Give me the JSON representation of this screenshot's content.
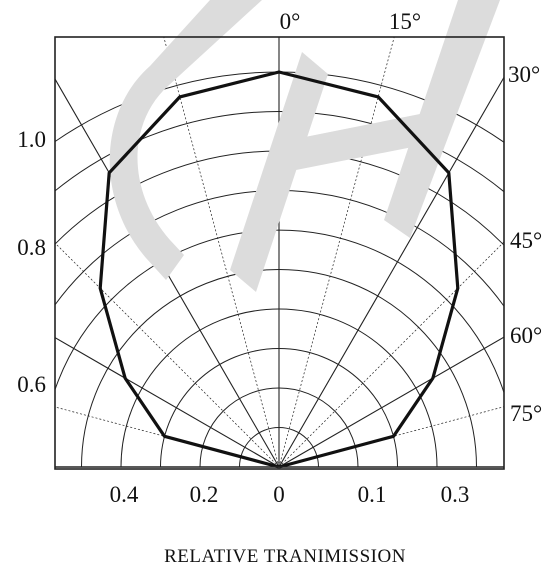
{
  "chart_data": {
    "type": "polar",
    "title": "",
    "xlabel": "RELATIVE TRANIMISSION",
    "angle_unit": "°",
    "angle_labels": [
      {
        "angle": 0,
        "text": "0°"
      },
      {
        "angle": 15,
        "text": "15°"
      },
      {
        "angle": 30,
        "text": "30°"
      },
      {
        "angle": 45,
        "text": "45°"
      },
      {
        "angle": 60,
        "text": "60°"
      },
      {
        "angle": 75,
        "text": "75°"
      }
    ],
    "radial_grid_angles": [
      -75,
      -60,
      -45,
      -30,
      -15,
      0,
      15,
      30,
      45,
      60,
      75
    ],
    "x_tick_labels": [
      {
        "value": -0.4,
        "text": "0.4"
      },
      {
        "value": -0.2,
        "text": "0.2"
      },
      {
        "value": 0,
        "text": "0"
      },
      {
        "value": 0.1,
        "text": "0.1"
      },
      {
        "value": 0.3,
        "text": "0.3"
      }
    ],
    "y_tick_labels": [
      {
        "value": 1.0,
        "text": "1.0"
      },
      {
        "value": 0.8,
        "text": "0.8"
      },
      {
        "value": 0.6,
        "text": "0.6"
      }
    ],
    "rings": 10,
    "rlim": [
      0,
      1.0
    ],
    "grid": true,
    "series": [
      {
        "points": [
          {
            "angle": -75,
            "r": 0.3
          },
          {
            "angle": -60,
            "r": 0.45
          },
          {
            "angle": -45,
            "r": 0.64
          },
          {
            "angle": -30,
            "r": 0.86
          },
          {
            "angle": -15,
            "r": 0.97
          },
          {
            "angle": 0,
            "r": 1.0
          },
          {
            "angle": 15,
            "r": 0.97
          },
          {
            "angle": 30,
            "r": 0.86
          },
          {
            "angle": 45,
            "r": 0.64
          },
          {
            "angle": 60,
            "r": 0.45
          },
          {
            "angle": 75,
            "r": 0.3
          }
        ]
      }
    ]
  },
  "colors": {
    "line": "#111111",
    "grid": "#222222",
    "watermark": "#dcdcdc"
  }
}
